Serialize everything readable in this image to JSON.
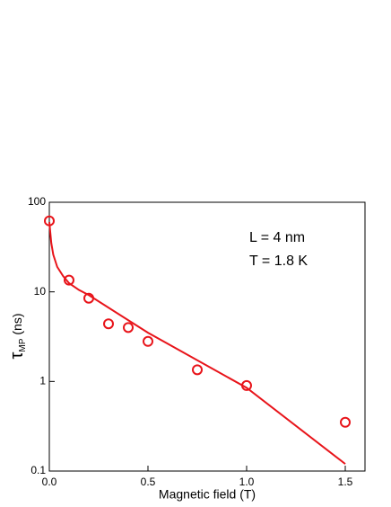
{
  "chart_data": {
    "type": "scatter",
    "xlabel": "Magnetic field (T)",
    "ylabel": {
      "symbol": "τ",
      "subscript": "MP",
      "unit": "(ns)"
    },
    "annotations": [
      "L = 4 nm",
      "T = 1.8 K"
    ],
    "xlim": [
      0,
      1.6
    ],
    "xticks": [
      {
        "value": 0,
        "label": "0.0"
      },
      0.5,
      {
        "value": 1,
        "label": "1.0"
      },
      1.5
    ],
    "ylim": [
      0.1,
      100
    ],
    "yticks": [
      0.1,
      1,
      10,
      100
    ],
    "ylog": true,
    "series": [
      {
        "type": "scatter",
        "color": "#e8141a",
        "x": [
          0,
          0.1,
          0.2,
          0.3,
          0.4,
          0.5,
          0.75,
          1.0,
          1.5
        ],
        "values": [
          62,
          13.5,
          8.5,
          4.4,
          4.0,
          2.8,
          1.35,
          0.9,
          0.35
        ]
      },
      {
        "type": "line",
        "color": "#e8141a",
        "x": [
          0,
          0.01,
          0.02,
          0.04,
          0.07,
          0.1,
          0.15,
          0.2,
          0.5,
          1.0,
          1.5
        ],
        "values": [
          60,
          35,
          26,
          19,
          15,
          12.5,
          10.5,
          9.2,
          3.5,
          0.85,
          0.12
        ]
      }
    ]
  }
}
